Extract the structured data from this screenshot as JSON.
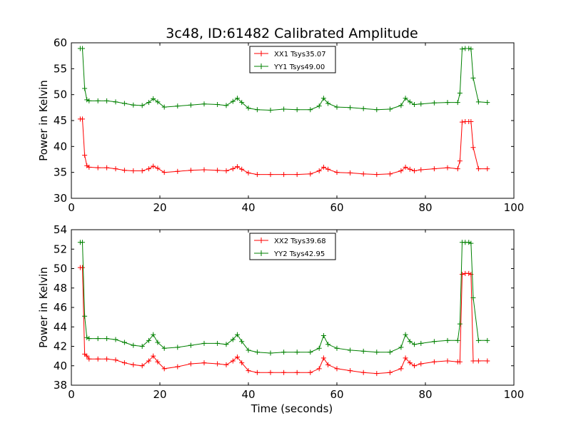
{
  "figure": {
    "title": "3c48, ID:61482 Calibrated Amplitude",
    "xlabel": "Time (seconds)"
  },
  "colors": {
    "red": "#ff0000",
    "green": "#008000",
    "axis": "#000000"
  },
  "chart_data": [
    {
      "type": "line",
      "title": "3c48, ID:61482 Calibrated Amplitude",
      "xlabel": "",
      "ylabel": "Power in Kelvin",
      "xlim": [
        0,
        100
      ],
      "ylim": [
        30,
        60
      ],
      "xticks": [
        0,
        20,
        40,
        60,
        80,
        100
      ],
      "yticks": [
        30,
        35,
        40,
        45,
        50,
        55,
        60
      ],
      "legend_position": "top-center",
      "series": [
        {
          "name": "XX1 Tsys35.07",
          "color": "#ff0000",
          "marker": "+",
          "x": [
            2,
            2.5,
            3,
            3.5,
            4,
            6,
            8,
            10,
            12,
            14,
            16,
            17.5,
            18.5,
            19.5,
            21,
            24,
            27,
            30,
            33,
            35,
            36.5,
            37.5,
            38.5,
            40,
            42,
            45,
            48,
            51,
            54,
            56,
            57,
            58,
            60,
            63,
            66,
            69,
            72,
            74.5,
            75.5,
            76.5,
            77.5,
            79,
            82,
            85,
            87.3,
            87.8,
            88.3,
            89,
            89.8,
            90.3,
            90.8,
            92,
            94
          ],
          "y": [
            45.3,
            45.3,
            38.3,
            36.3,
            36.0,
            35.9,
            35.9,
            35.7,
            35.4,
            35.3,
            35.3,
            35.7,
            36.2,
            35.8,
            35.0,
            35.2,
            35.4,
            35.5,
            35.4,
            35.3,
            35.7,
            36.1,
            35.6,
            34.9,
            34.6,
            34.6,
            34.6,
            34.6,
            34.7,
            35.3,
            36.0,
            35.6,
            35.0,
            34.9,
            34.7,
            34.6,
            34.7,
            35.3,
            36.0,
            35.6,
            35.3,
            35.5,
            35.7,
            35.9,
            35.7,
            37.2,
            44.7,
            44.8,
            44.8,
            44.8,
            39.8,
            35.7,
            35.7
          ]
        },
        {
          "name": "YY1 Tsys49.00",
          "color": "#008000",
          "marker": "+",
          "x": [
            2,
            2.5,
            3,
            3.5,
            4,
            6,
            8,
            10,
            12,
            14,
            16,
            17.5,
            18.5,
            19.5,
            21,
            24,
            27,
            30,
            33,
            35,
            36.5,
            37.5,
            38.5,
            40,
            42,
            45,
            48,
            51,
            54,
            56,
            57,
            58,
            60,
            63,
            66,
            69,
            72,
            74.5,
            75.5,
            76.5,
            77.5,
            79,
            82,
            85,
            87.3,
            87.8,
            88.3,
            89,
            89.8,
            90.3,
            90.8,
            92,
            94
          ],
          "y": [
            58.9,
            58.9,
            51.2,
            49.0,
            48.8,
            48.8,
            48.8,
            48.6,
            48.3,
            48.0,
            47.9,
            48.5,
            49.2,
            48.6,
            47.6,
            47.8,
            48.0,
            48.2,
            48.1,
            47.9,
            48.7,
            49.3,
            48.5,
            47.4,
            47.1,
            47.0,
            47.2,
            47.1,
            47.1,
            47.8,
            49.3,
            48.3,
            47.6,
            47.5,
            47.3,
            47.1,
            47.2,
            47.9,
            49.3,
            48.6,
            48.1,
            48.2,
            48.4,
            48.5,
            48.5,
            50.3,
            58.8,
            58.9,
            58.9,
            58.8,
            53.2,
            48.6,
            48.5
          ]
        }
      ]
    },
    {
      "type": "line",
      "title": "",
      "xlabel": "Time (seconds)",
      "ylabel": "Power in Kelvin",
      "xlim": [
        0,
        100
      ],
      "ylim": [
        38,
        54
      ],
      "xticks": [
        0,
        20,
        40,
        60,
        80,
        100
      ],
      "yticks": [
        38,
        40,
        42,
        44,
        46,
        48,
        50,
        52,
        54
      ],
      "legend_position": "top-center",
      "series": [
        {
          "name": "XX2 Tsys39.68",
          "color": "#ff0000",
          "marker": "+",
          "x": [
            2,
            2.5,
            3,
            3.5,
            4,
            6,
            8,
            10,
            12,
            14,
            16,
            17.5,
            18.5,
            19.5,
            21,
            24,
            27,
            30,
            33,
            35,
            36.5,
            37.5,
            38.5,
            40,
            42,
            45,
            48,
            51,
            54,
            56,
            57,
            58,
            60,
            63,
            66,
            69,
            72,
            74.5,
            75.5,
            76.5,
            77.5,
            79,
            82,
            85,
            87.3,
            87.8,
            88.3,
            89,
            89.8,
            90.3,
            90.8,
            92,
            94
          ],
          "y": [
            50.1,
            50.1,
            41.2,
            41.0,
            40.7,
            40.7,
            40.7,
            40.6,
            40.3,
            40.1,
            40.0,
            40.5,
            41.0,
            40.4,
            39.7,
            39.9,
            40.2,
            40.3,
            40.2,
            40.1,
            40.5,
            40.9,
            40.3,
            39.5,
            39.3,
            39.3,
            39.3,
            39.3,
            39.3,
            39.7,
            40.8,
            40.1,
            39.7,
            39.5,
            39.3,
            39.2,
            39.3,
            39.7,
            40.8,
            40.3,
            40.0,
            40.2,
            40.4,
            40.5,
            40.4,
            40.4,
            49.4,
            49.5,
            49.5,
            49.4,
            40.5,
            40.5,
            40.5
          ]
        },
        {
          "name": "YY2 Tsys42.95",
          "color": "#008000",
          "marker": "+",
          "x": [
            2,
            2.5,
            3,
            3.5,
            4,
            6,
            8,
            10,
            12,
            14,
            16,
            17.5,
            18.5,
            19.5,
            21,
            24,
            27,
            30,
            33,
            35,
            36.5,
            37.5,
            38.5,
            40,
            42,
            45,
            48,
            51,
            54,
            56,
            57,
            58,
            60,
            63,
            66,
            69,
            72,
            74.5,
            75.5,
            76.5,
            77.5,
            79,
            82,
            85,
            87.3,
            87.8,
            88.3,
            89,
            89.8,
            90.3,
            90.8,
            92,
            94
          ],
          "y": [
            52.7,
            52.7,
            45.1,
            42.9,
            42.8,
            42.8,
            42.8,
            42.7,
            42.4,
            42.1,
            42.0,
            42.6,
            43.2,
            42.4,
            41.8,
            41.9,
            42.1,
            42.3,
            42.3,
            42.2,
            42.7,
            43.2,
            42.5,
            41.6,
            41.4,
            41.3,
            41.4,
            41.4,
            41.4,
            41.8,
            43.1,
            42.2,
            41.8,
            41.6,
            41.5,
            41.4,
            41.4,
            41.9,
            43.2,
            42.5,
            42.2,
            42.3,
            42.5,
            42.6,
            42.6,
            44.3,
            52.7,
            52.7,
            52.7,
            52.6,
            47.0,
            42.6,
            42.6
          ]
        }
      ]
    }
  ]
}
